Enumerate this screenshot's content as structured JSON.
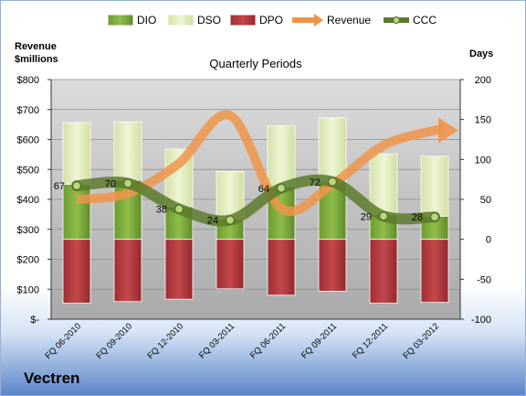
{
  "company": "Vectren",
  "chart_data": {
    "type": "bar",
    "title": "Quarterly Periods",
    "ylabel_left": [
      "Revenue",
      "$millions"
    ],
    "ylabel_right": "Days",
    "categories": [
      "FQ 06-2010",
      "FQ 09-2010",
      "FQ 12-2010",
      "FQ 03-2011",
      "FQ 06-2011",
      "FQ 09-2011",
      "FQ 12-2011",
      "FQ 03-2012"
    ],
    "left_axis": {
      "min": 0,
      "max": 800,
      "step": 100,
      "tick_labels": [
        "$-",
        "$100",
        "$200",
        "$300",
        "$400",
        "$500",
        "$600",
        "$700",
        "$800"
      ]
    },
    "right_axis": {
      "min": -100,
      "max": 200,
      "step": 50,
      "tick_labels": [
        "-100",
        "-50",
        "0",
        "50",
        "100",
        "150",
        "200"
      ]
    },
    "legend": {
      "placement": "top",
      "items": [
        {
          "name": "DIO",
          "color": "#7fa93a"
        },
        {
          "name": "DSO",
          "color": "#dfeabf"
        },
        {
          "name": "DPO",
          "color": "#b23a3e"
        },
        {
          "name": "Revenue",
          "color": "#f0944a"
        },
        {
          "name": "CCC",
          "color": "#5c7a2c"
        }
      ]
    },
    "series": [
      {
        "name": "DPO",
        "axis": "right",
        "values": [
          -80,
          -78,
          -75,
          -62,
          -70,
          -65,
          -80,
          -79
        ]
      },
      {
        "name": "DIO",
        "axis": "right",
        "values": [
          69,
          74,
          41,
          25,
          66,
          72,
          31,
          29
        ]
      },
      {
        "name": "DSO",
        "axis": "right",
        "values": [
          77,
          73,
          72,
          60,
          76,
          80,
          76,
          75
        ]
      },
      {
        "name": "Revenue",
        "axis": "left",
        "values": [
          400,
          420,
          520,
          680,
          370,
          450,
          580,
          630
        ]
      },
      {
        "name": "CCC",
        "axis": "right",
        "values": [
          67,
          70,
          38,
          24,
          64,
          72,
          29,
          28
        ]
      }
    ],
    "ccc_labels": [
      "67",
      "70",
      "38",
      "24",
      "64",
      "72",
      "29",
      "28"
    ],
    "grid": true
  }
}
